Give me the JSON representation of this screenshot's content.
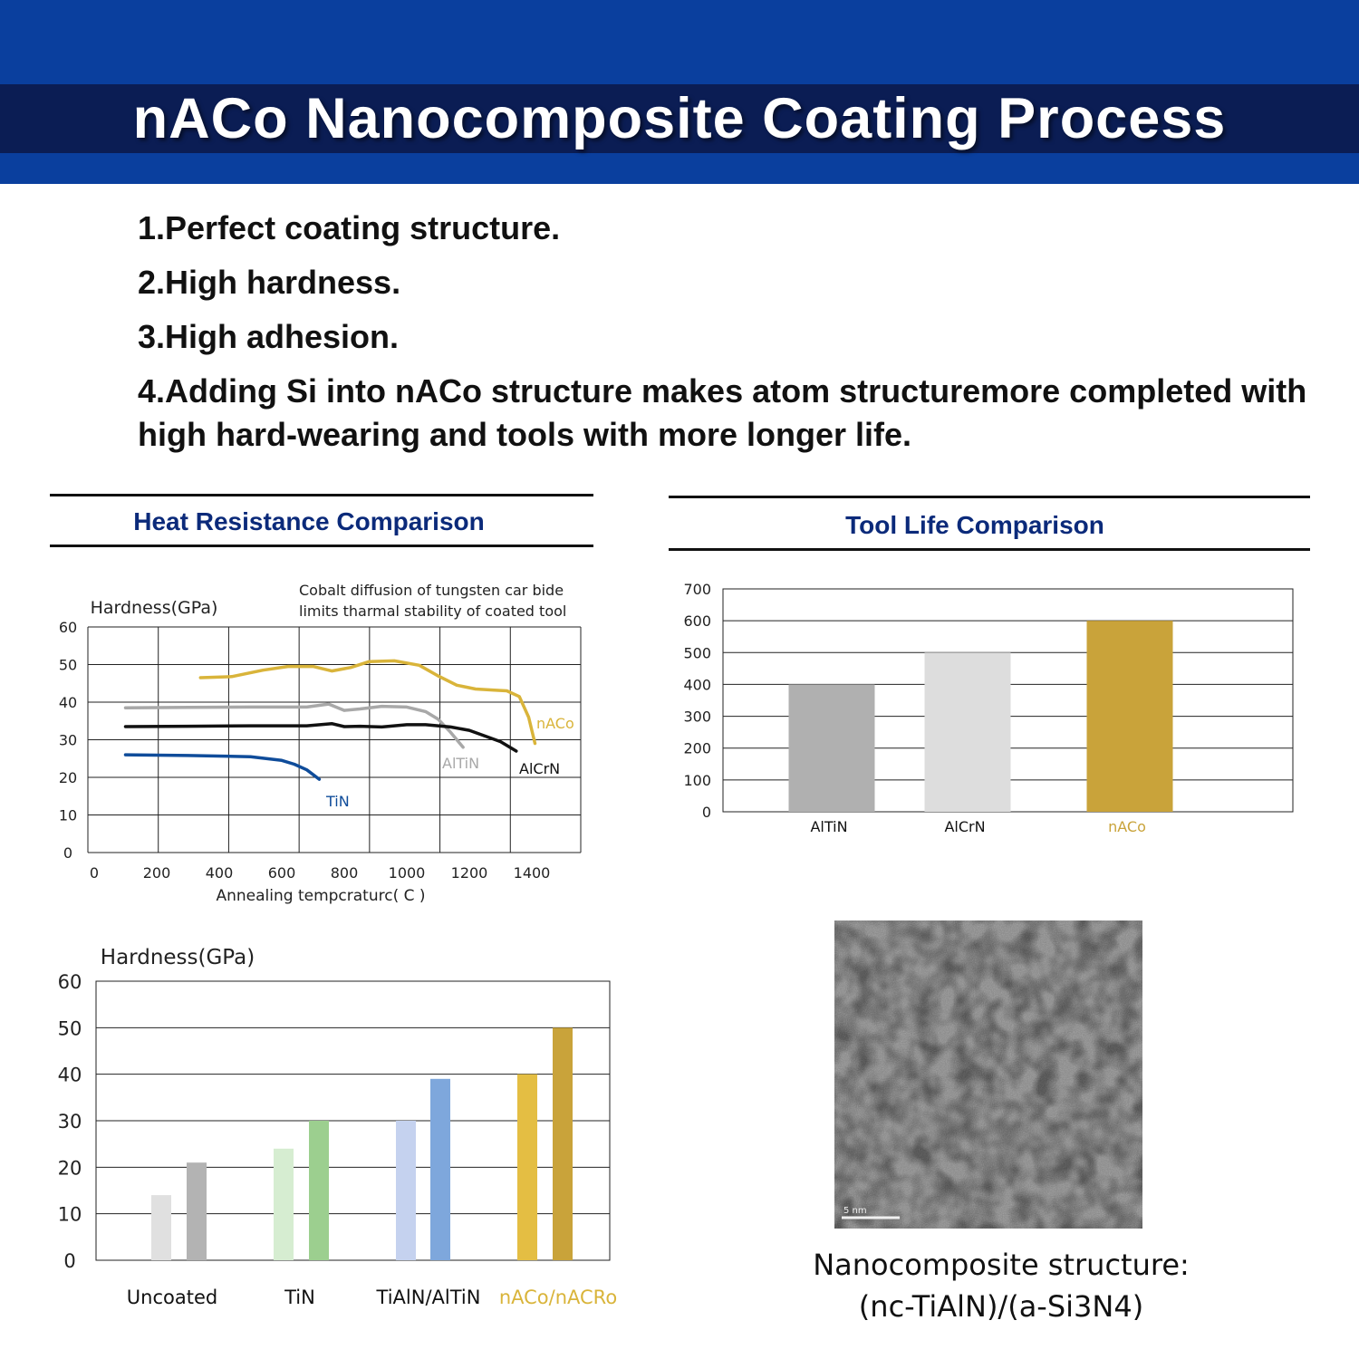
{
  "header": {
    "title": "nACo Nanocomposite Coating Process",
    "colors": {
      "outer": "#0a3f9e",
      "inner": "#0b1d54"
    }
  },
  "features": [
    "1.Perfect coating structure.",
    "2.High hardness.",
    "3.High adhesion.",
    "4.Adding Si into nACo structure makes atom structuremore completed with high hard-wearing and tools with more longer life."
  ],
  "sections": {
    "heat_title": "Heat Resistance Comparison",
    "tool_title": "Tool Life Comparison"
  },
  "chart_data": [
    {
      "type": "line",
      "ylabel": "Hardness(GPa)",
      "xlabel": "Annealing tempcraturc( C )",
      "annotation": "Cobalt diffusion of tungsten car bide limits tharmal stability of coated tool",
      "annotation_lines": [
        "Cobalt diffusion of tungsten car bide",
        "limits tharmal stability of coated tool"
      ],
      "y_ticks": [
        0,
        10,
        20,
        30,
        40,
        50,
        60
      ],
      "x_ticks": [
        0,
        200,
        400,
        600,
        800,
        1000,
        1200,
        1400
      ],
      "xlim": [
        0,
        1400
      ],
      "ylim": [
        0,
        60
      ],
      "grid": true,
      "series": [
        {
          "name": "nACo",
          "color": "#d9b43a",
          "x": [
            340,
            440,
            540,
            620,
            700,
            760,
            820,
            880,
            960,
            1040,
            1100,
            1160,
            1220,
            1280,
            1320,
            1360,
            1390,
            1410
          ],
          "y": [
            46.5,
            46.8,
            48.5,
            49.5,
            49.5,
            48.3,
            49.2,
            50.8,
            51.0,
            49.8,
            47.0,
            44.5,
            43.5,
            43.2,
            43.0,
            41.5,
            36.0,
            29.0
          ]
        },
        {
          "name": "AlTiN",
          "color": "#a8a8a8",
          "x": [
            100,
            300,
            500,
            680,
            750,
            800,
            850,
            920,
            1000,
            1060,
            1100,
            1140,
            1180
          ],
          "y": [
            38.5,
            38.6,
            38.7,
            38.7,
            39.5,
            37.8,
            38.2,
            38.9,
            38.7,
            37.5,
            35.5,
            32.0,
            28.0
          ]
        },
        {
          "name": "AlCrN",
          "color": "#111111",
          "x": [
            100,
            300,
            500,
            680,
            760,
            800,
            850,
            920,
            1000,
            1060,
            1140,
            1200,
            1250,
            1300,
            1350
          ],
          "y": [
            33.5,
            33.6,
            33.7,
            33.7,
            34.3,
            33.5,
            33.6,
            33.4,
            34.0,
            34.0,
            33.4,
            32.5,
            31.0,
            29.5,
            27.0
          ]
        },
        {
          "name": "TiN",
          "color": "#0f4c9a",
          "x": [
            100,
            300,
            500,
            600,
            640,
            680,
            720
          ],
          "y": [
            26.0,
            25.8,
            25.5,
            24.5,
            23.5,
            22.0,
            19.5
          ]
        }
      ]
    },
    {
      "type": "bar",
      "categories": [
        "AlTiN",
        "AlCrN",
        "nACo"
      ],
      "values": [
        400,
        500,
        600
      ],
      "colors": [
        "#b0b0b0",
        "#dddddd",
        "#c9a33a"
      ],
      "label_colors": [
        "#111111",
        "#111111",
        "#c9a33a"
      ],
      "y_ticks": [
        0,
        100,
        200,
        300,
        400,
        500,
        600,
        700
      ],
      "ylim": [
        0,
        700
      ],
      "grid": true
    },
    {
      "type": "bar",
      "ylabel": "Hardness(GPa)",
      "categories": [
        "Uncoated",
        "TiN",
        "TiAlN/AlTiN",
        "nACo/nACRo"
      ],
      "label_colors": [
        "#111111",
        "#111111",
        "#111111",
        "#d9b43a"
      ],
      "series": [
        {
          "values": [
            14,
            24,
            30,
            40
          ],
          "colors": [
            "#e0e0e0",
            "#d6edd1",
            "#c5d2ef",
            "#e4be43"
          ]
        },
        {
          "values": [
            21,
            30,
            39,
            50
          ],
          "colors": [
            "#b3b3b3",
            "#9ccf8f",
            "#7ea7dc",
            "#c9a33a"
          ]
        }
      ],
      "y_ticks": [
        0,
        10,
        20,
        30,
        40,
        50,
        60
      ],
      "ylim": [
        0,
        60
      ],
      "grid": true
    }
  ],
  "micrograph": {
    "caption_line1": "Nanocomposite structure:",
    "caption_line2": "(nc-TiAlN)/(a-Si3N4)",
    "scale_label": "5 nm"
  }
}
